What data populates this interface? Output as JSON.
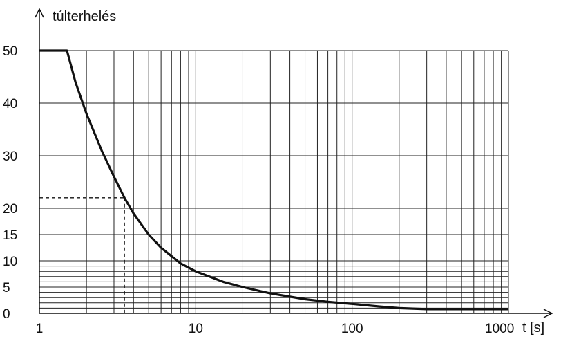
{
  "chart_data": {
    "type": "line",
    "title": "",
    "ylabel": "túlterhelés",
    "xlabel": "t [s]",
    "x_scale": "log",
    "xlim": [
      1,
      1000
    ],
    "ylim": [
      0,
      50
    ],
    "grid": true,
    "x_tick_labels": [
      "1",
      "10",
      "100",
      "1000"
    ],
    "x_grid_values": [
      1,
      2,
      3,
      4,
      5,
      6,
      7,
      8,
      9,
      10,
      20,
      30,
      40,
      50,
      60,
      70,
      80,
      90,
      100,
      200,
      300,
      400,
      500,
      600,
      700,
      800,
      900,
      1000
    ],
    "y_ticks": [
      {
        "value": 0,
        "label": "0"
      },
      {
        "value": 5,
        "label": "5"
      },
      {
        "value": 10,
        "label": "10"
      },
      {
        "value": 15,
        "label": "15"
      },
      {
        "value": 20,
        "label": "20"
      },
      {
        "value": 30,
        "label": "30"
      },
      {
        "value": 40,
        "label": "40"
      },
      {
        "value": 50,
        "label": "50"
      }
    ],
    "y_minor_grid": [
      1,
      2,
      3,
      4,
      6,
      7,
      8,
      9
    ],
    "series": [
      {
        "color": "#111111",
        "points": [
          [
            1,
            50
          ],
          [
            1.5,
            50
          ],
          [
            1.7,
            44
          ],
          [
            2,
            38
          ],
          [
            2.5,
            31
          ],
          [
            3,
            26
          ],
          [
            3.5,
            22
          ],
          [
            4,
            19
          ],
          [
            5,
            15
          ],
          [
            6,
            12.5
          ],
          [
            8,
            9.5
          ],
          [
            10,
            8
          ],
          [
            15,
            6
          ],
          [
            20,
            5
          ],
          [
            30,
            3.8
          ],
          [
            50,
            2.7
          ],
          [
            70,
            2.2
          ],
          [
            100,
            1.8
          ],
          [
            150,
            1.3
          ],
          [
            200,
            1.0
          ],
          [
            300,
            0.8
          ],
          [
            500,
            0.8
          ],
          [
            1000,
            0.8
          ]
        ]
      }
    ],
    "annotations": [
      {
        "type": "dashed-guide",
        "x": 3.5,
        "y": 22
      }
    ]
  }
}
